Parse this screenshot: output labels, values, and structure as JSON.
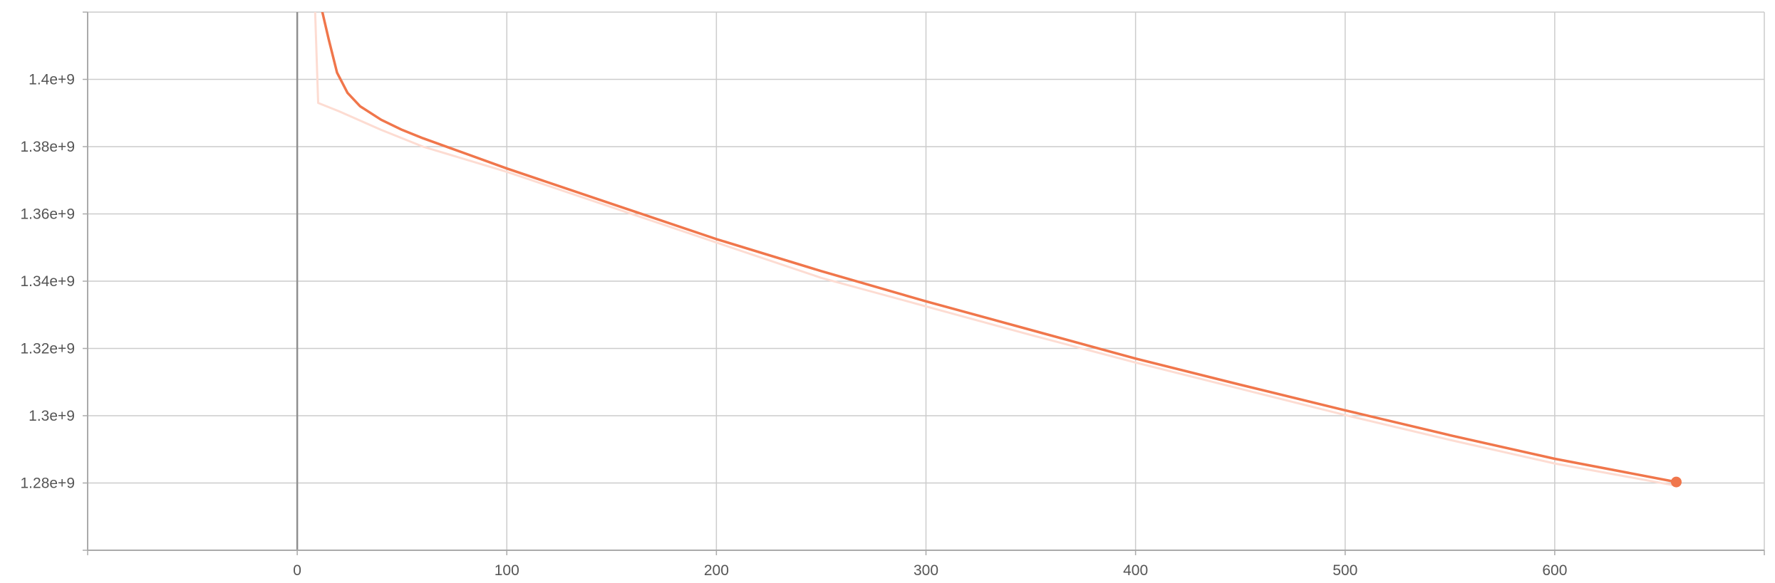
{
  "chart_data": {
    "type": "line",
    "title": "",
    "xlabel": "",
    "ylabel": "",
    "xlim": [
      -100,
      700
    ],
    "ylim": [
      1260000000,
      1420000000
    ],
    "grid": true,
    "legend": "none",
    "x_ticks": [
      {
        "value": 0,
        "label": "0"
      },
      {
        "value": 100,
        "label": "100"
      },
      {
        "value": 200,
        "label": "200"
      },
      {
        "value": 300,
        "label": "300"
      },
      {
        "value": 400,
        "label": "400"
      },
      {
        "value": 500,
        "label": "500"
      },
      {
        "value": 600,
        "label": "600"
      }
    ],
    "y_ticks": [
      {
        "value": 1280000000,
        "label": "1.28e+9"
      },
      {
        "value": 1300000000,
        "label": "1.3e+9"
      },
      {
        "value": 1320000000,
        "label": "1.32e+9"
      },
      {
        "value": 1340000000,
        "label": "1.34e+9"
      },
      {
        "value": 1360000000,
        "label": "1.36e+9"
      },
      {
        "value": 1380000000,
        "label": "1.38e+9"
      },
      {
        "value": 1400000000,
        "label": "1.4e+9"
      }
    ],
    "colors": {
      "smoothed": "#f0764b",
      "raw": "#fddcd2",
      "grid": "#cccccc",
      "axis": "#aaaaaa",
      "zero_line": "#8f8f8f"
    },
    "series": [
      {
        "style": "raw",
        "x": [
          8,
          10,
          20,
          40,
          60,
          100,
          150,
          200,
          250,
          300,
          350,
          400,
          450,
          500,
          550,
          600,
          658
        ],
        "y": [
          1430000000,
          1393000000,
          1390500000,
          1385000000,
          1380000000,
          1372500000,
          1362000000,
          1351500000,
          1341000000,
          1332500000,
          1324000000,
          1315800000,
          1308000000,
          1300200000,
          1292800000,
          1285800000,
          1279200000
        ]
      },
      {
        "style": "smoothed",
        "marker_last": true,
        "x": [
          12,
          15,
          19,
          24,
          30,
          40,
          50,
          60,
          80,
          100,
          150,
          200,
          250,
          300,
          350,
          400,
          450,
          500,
          550,
          600,
          658
        ],
        "y": [
          1420000000,
          1412000000,
          1402000000,
          1396000000,
          1392000000,
          1388000000,
          1385000000,
          1382500000,
          1378000000,
          1373500000,
          1363000000,
          1352500000,
          1343000000,
          1334000000,
          1325500000,
          1317000000,
          1309200000,
          1301600000,
          1294200000,
          1287200000,
          1280300000
        ]
      }
    ]
  }
}
